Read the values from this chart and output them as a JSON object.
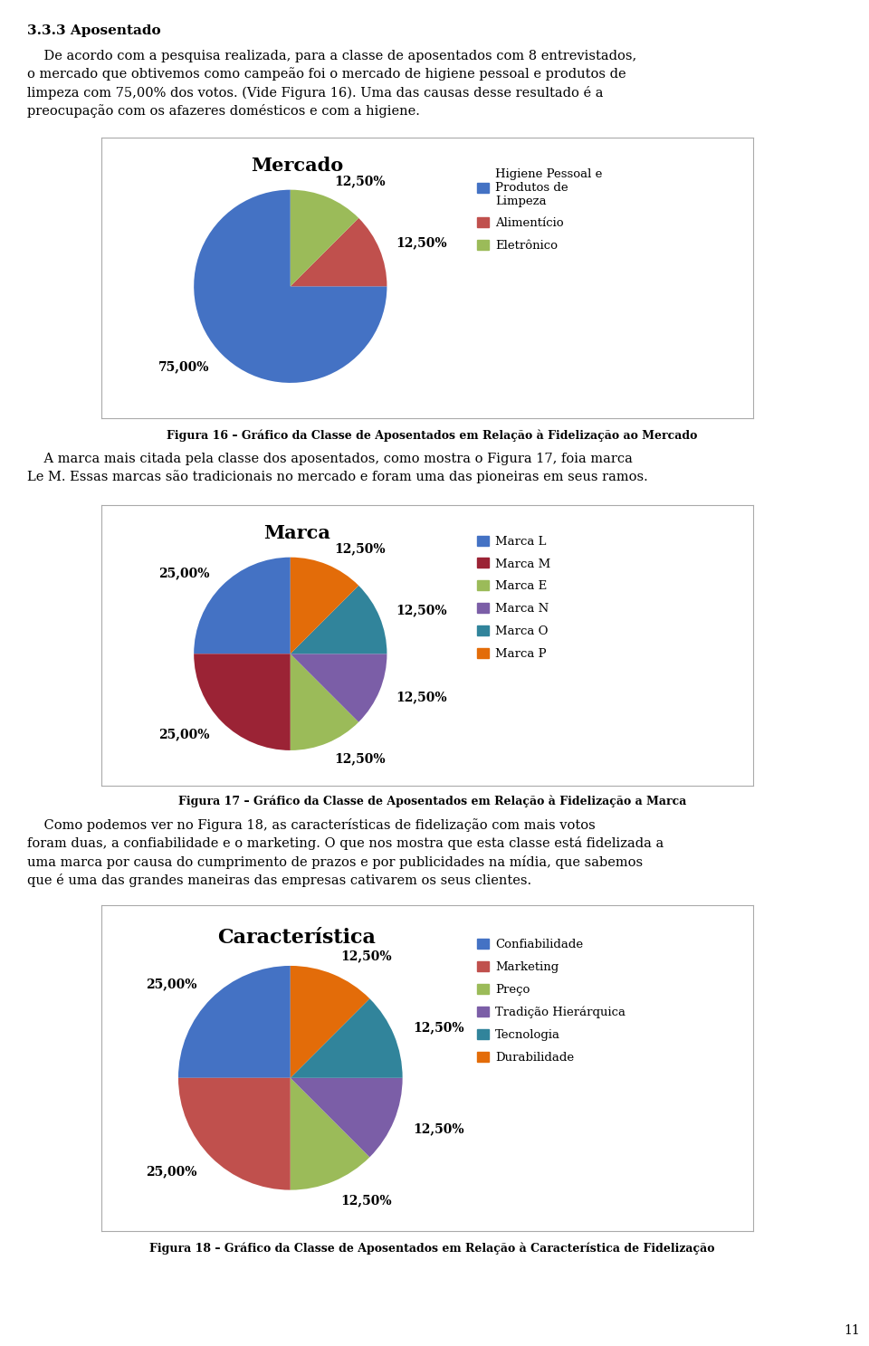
{
  "page_title": "3.3.3 Aposentado",
  "chart1": {
    "title": "Mercado",
    "values": [
      75.0,
      12.5,
      12.5
    ],
    "labels": [
      "75,00%",
      "12,50%",
      "12,50%"
    ],
    "colors": [
      "#4472C4",
      "#C0504D",
      "#9BBB59"
    ],
    "legend": [
      "Higiene Pessoal e\nProdutos de\nLimpeza",
      "Alimentício",
      "Eletrônico"
    ],
    "legend_colors": [
      "#4472C4",
      "#C0504D",
      "#9BBB59"
    ],
    "startangle": 90
  },
  "fig16_caption": "Figura 16 – Gráfico da Classe de Aposentados em Relação à Fidelização ao Mercado",
  "chart2": {
    "title": "Marca",
    "values": [
      25.0,
      25.0,
      12.5,
      12.5,
      12.5,
      12.5
    ],
    "labels": [
      "25,00%",
      "25,00%",
      "12,50%",
      "12,50%",
      "12,50%",
      "12,50%"
    ],
    "colors": [
      "#4472C4",
      "#9B2335",
      "#9BBB59",
      "#7B5EA7",
      "#31849B",
      "#E36C09"
    ],
    "legend": [
      "Marca L",
      "Marca M",
      "Marca E",
      "Marca N",
      "Marca O",
      "Marca P"
    ],
    "legend_colors": [
      "#4472C4",
      "#9B2335",
      "#9BBB59",
      "#7B5EA7",
      "#31849B",
      "#E36C09"
    ],
    "startangle": 90
  },
  "fig17_caption": "Figura 17 – Gráfico da Classe de Aposentados em Relação à Fidelização a Marca",
  "chart3": {
    "title": "Característica",
    "values": [
      25.0,
      25.0,
      12.5,
      12.5,
      12.5,
      12.5
    ],
    "labels": [
      "25,00%",
      "25,00%",
      "12,50%",
      "12,50%",
      "12,50%",
      "12,50%"
    ],
    "colors": [
      "#4472C4",
      "#C0504D",
      "#9BBB59",
      "#7B5EA7",
      "#31849B",
      "#E36C09"
    ],
    "legend": [
      "Confiabilidade",
      "Marketing",
      "Preço",
      "Tradição Hierárquica",
      "Tecnologia",
      "Durabilidade"
    ],
    "legend_colors": [
      "#4472C4",
      "#C0504D",
      "#9BBB59",
      "#7B5EA7",
      "#31849B",
      "#E36C09"
    ],
    "startangle": 90
  },
  "fig18_caption": "Figura 18 – Gráfico da Classe de Aposentados em Relação à Característica de Fidelização",
  "page_number": "11",
  "bg_color": "#FFFFFF",
  "para1_lines": [
    "    De acordo com a pesquisa realizada, para a classe de aposentados com 8 entrevistados,",
    "o mercado que obtivemos como campeão foi o mercado de higiene pessoal e produtos de",
    "limpeza com 75,00% dos votos. (Vide Figura 16). Uma das causas desse resultado é a",
    "preocupação com os afazeres domésticos e com a higiene."
  ],
  "para2_lines": [
    "    A marca mais citada pela classe dos aposentados, como mostra o Figura 17, foia marca",
    "Le M. Essas marcas são tradicionais no mercado e foram uma das pioneiras em seus ramos."
  ],
  "para3_lines": [
    "    Como podemos ver no Figura 18, as características de fidelização com mais votos",
    "foram duas, a confiabilidade e o marketing. O que nos mostra que esta classe está fidelizada a",
    "uma marca por causa do cumprimento de prazos e por publicidades na mídia, que sabemos",
    "que é uma das grandes maneiras das empresas cativarem os seus clientes."
  ]
}
